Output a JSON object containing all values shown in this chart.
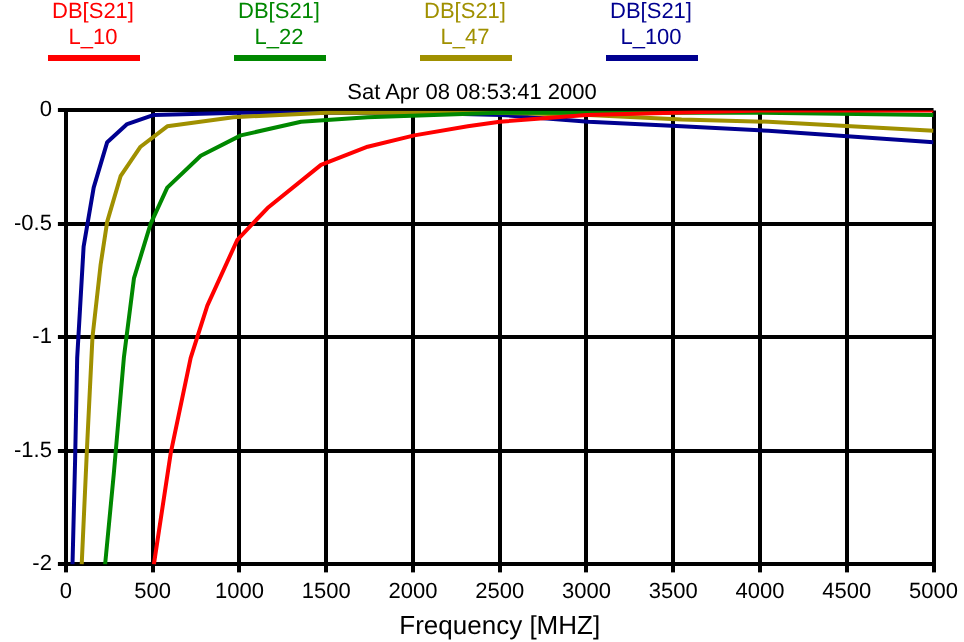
{
  "chart_data": {
    "type": "line",
    "title": "Sat Apr 08 08:53:41 2000",
    "xlabel": "Frequency [MHZ]",
    "xlim": [
      0,
      5000
    ],
    "xticks": [
      0,
      500,
      1000,
      1500,
      2000,
      2500,
      3000,
      3500,
      4000,
      4500,
      5000
    ],
    "ylim": [
      -2,
      0
    ],
    "yticks": [
      0,
      -0.5,
      -1,
      -1.5,
      -2
    ],
    "grid": true,
    "legend": "top left",
    "line_style": "solid",
    "series": [
      {
        "name": "DB[S21] L_10",
        "color": "#ff0000",
        "x": [
          507,
          604,
          719,
          815,
          988,
          1162,
          1470,
          1739,
          2008,
          2316,
          2500,
          3000,
          3500,
          4000,
          4500,
          5000
        ],
        "values": [
          -2,
          -1.51,
          -1.09,
          -0.86,
          -0.57,
          -0.43,
          -0.24,
          -0.16,
          -0.11,
          -0.07,
          -0.05,
          -0.02,
          -0.01,
          0,
          0,
          0
        ]
      },
      {
        "name": "DB[S21] L_22",
        "color": "#008800",
        "x": [
          226,
          276,
          334,
          392,
          488,
          584,
          777,
          1008,
          1355,
          1739,
          2500,
          3000,
          4000,
          5000
        ],
        "values": [
          -2,
          -1.6,
          -1.09,
          -0.74,
          -0.5,
          -0.34,
          -0.2,
          -0.11,
          -0.05,
          -0.03,
          -0.01,
          -0.01,
          -0.01,
          -0.02
        ]
      },
      {
        "name": "DB[S21] L_47",
        "color": "#a09000",
        "x": [
          91,
          122,
          153,
          200,
          238,
          315,
          430,
          584,
          965,
          1500,
          2000,
          2500,
          3012,
          3548,
          4048,
          5000
        ],
        "values": [
          -2,
          -1.48,
          -1,
          -0.68,
          -0.49,
          -0.29,
          -0.16,
          -0.07,
          -0.03,
          -0.01,
          -0.01,
          -0.01,
          -0.02,
          -0.04,
          -0.05,
          -0.09
        ]
      },
      {
        "name": "DB[S21] L_100",
        "color": "#000090",
        "x": [
          38,
          53,
          65,
          102,
          160,
          238,
          353,
          507,
          1000,
          1500,
          2000,
          2510,
          3012,
          3548,
          4048,
          5000
        ],
        "values": [
          -2,
          -1.54,
          -1.09,
          -0.6,
          -0.34,
          -0.14,
          -0.06,
          -0.02,
          -0.01,
          -0.01,
          -0.01,
          -0.02,
          -0.05,
          -0.07,
          -0.09,
          -0.14
        ]
      }
    ]
  }
}
